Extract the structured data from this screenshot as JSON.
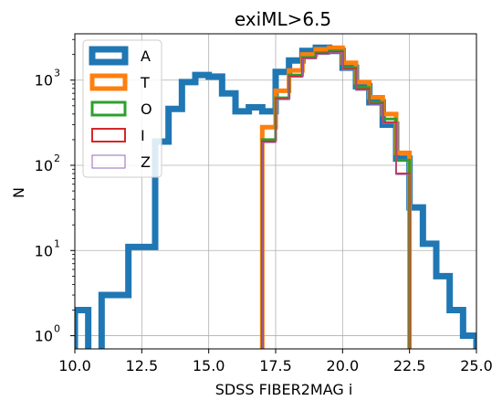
{
  "chart_data": {
    "type": "histogram-step",
    "title": "exiML>6.5",
    "xlabel": "SDSS FIBER2MAG i",
    "ylabel": "N",
    "xlim": [
      10.0,
      25.0
    ],
    "ylim": [
      0.7,
      3500
    ],
    "yscale": "log",
    "grid": true,
    "legend_loc": "upper left",
    "xticks": [
      10.0,
      12.5,
      15.0,
      17.5,
      20.0,
      22.5,
      25.0
    ],
    "xtick_labels": [
      "10.0",
      "12.5",
      "15.0",
      "17.5",
      "20.0",
      "22.5",
      "25.0"
    ],
    "yticks": [
      1,
      10,
      100,
      1000
    ],
    "bin_edges": [
      10.0,
      10.5,
      11.0,
      11.5,
      12.0,
      12.5,
      13.0,
      13.5,
      14.0,
      14.5,
      15.0,
      15.5,
      16.0,
      16.5,
      17.0,
      17.5,
      18.0,
      18.5,
      19.0,
      19.5,
      20.0,
      20.5,
      21.0,
      21.5,
      22.0,
      22.5,
      23.0,
      23.5,
      24.0,
      24.5,
      25.0
    ],
    "series": [
      {
        "name": "A",
        "color": "#1f77b4",
        "width": 7,
        "values": [
          2,
          0,
          3,
          3,
          11,
          11,
          190,
          460,
          950,
          1150,
          1100,
          700,
          430,
          480,
          430,
          1250,
          1700,
          2200,
          2400,
          2200,
          1400,
          850,
          550,
          300,
          120,
          32,
          12,
          5,
          2,
          1
        ]
      },
      {
        "name": "T",
        "color": "#ff7f0e",
        "width": 5,
        "values": [
          0,
          0,
          0,
          0,
          0,
          0,
          0,
          0,
          0,
          0,
          0,
          0,
          0,
          0,
          280,
          750,
          1300,
          2000,
          2300,
          2400,
          1600,
          950,
          630,
          400,
          140,
          0,
          0,
          0,
          0,
          0
        ]
      },
      {
        "name": "O",
        "color": "#2ca02c",
        "width": 3,
        "values": [
          0,
          0,
          0,
          0,
          0,
          0,
          0,
          0,
          0,
          0,
          0,
          0,
          0,
          0,
          200,
          620,
          1150,
          1850,
          2100,
          2200,
          1400,
          820,
          550,
          350,
          115,
          0,
          0,
          0,
          0,
          0
        ]
      },
      {
        "name": "I",
        "color": "#d62728",
        "width": 2,
        "values": [
          0,
          0,
          0,
          0,
          0,
          0,
          0,
          0,
          0,
          0,
          0,
          0,
          0,
          0,
          190,
          600,
          1100,
          1800,
          2050,
          2150,
          1350,
          780,
          530,
          320,
          80,
          0,
          0,
          0,
          0,
          0
        ]
      },
      {
        "name": "Z",
        "color": "#9467bd",
        "width": 1,
        "values": [
          0,
          0,
          0,
          0,
          0,
          0,
          0,
          0,
          0,
          0,
          0,
          0,
          0,
          0,
          185,
          590,
          1080,
          1780,
          2000,
          2100,
          1320,
          760,
          520,
          310,
          78,
          0,
          0,
          0,
          0,
          0
        ]
      }
    ]
  }
}
